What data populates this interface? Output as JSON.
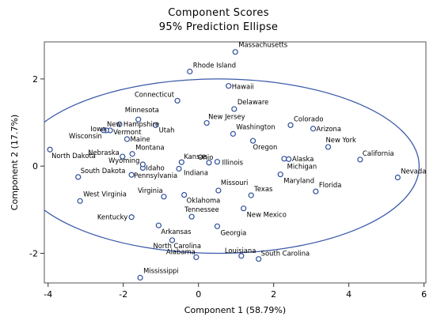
{
  "chart_data": {
    "type": "scatter",
    "title": "Component Scores",
    "subtitle": "95% Prediction Ellipse",
    "xlabel": "Component 1 (58.79%)",
    "ylabel": "Component 2 (17.7%)",
    "xlim": [
      -4.1,
      6.05
    ],
    "ylim": [
      -2.68,
      2.85
    ],
    "xticks": [
      "-4",
      "-2",
      "0",
      "2",
      "4",
      "6"
    ],
    "xtick_values": [
      -4,
      -2,
      0,
      2,
      4,
      6
    ],
    "yticks": [
      "-2",
      "0",
      "2"
    ],
    "ytick_values": [
      -2,
      0,
      2
    ],
    "grid": false,
    "marker_color": "#2f4f9a",
    "ellipse_color": "#3a5aa8",
    "ellipse": {
      "center": [
        0.52,
        0.0
      ],
      "semi_axis_x": 5.35,
      "semi_axis_y": 2.0
    },
    "points": [
      {
        "label": "Massachusetts",
        "x": 0.98,
        "y": 2.62
      },
      {
        "label": "Rhode Island",
        "x": -0.23,
        "y": 2.17
      },
      {
        "label": "Connecticut",
        "x": -0.56,
        "y": 1.5
      },
      {
        "label": "Hawaii",
        "x": 0.8,
        "y": 1.84
      },
      {
        "label": "Delaware",
        "x": 0.95,
        "y": 1.31
      },
      {
        "label": "New Jersey",
        "x": 0.22,
        "y": 0.99
      },
      {
        "label": "Washington",
        "x": 0.92,
        "y": 0.74
      },
      {
        "label": "Colorado",
        "x": 2.45,
        "y": 0.94
      },
      {
        "label": "Arizona",
        "x": 3.05,
        "y": 0.86
      },
      {
        "label": "New York",
        "x": 3.45,
        "y": 0.44
      },
      {
        "label": "California",
        "x": 4.3,
        "y": 0.15
      },
      {
        "label": "Nevada",
        "x": 5.3,
        "y": -0.26
      },
      {
        "label": "Oregon",
        "x": 1.45,
        "y": 0.58
      },
      {
        "label": "Alaska",
        "x": 2.28,
        "y": 0.17
      },
      {
        "label": "Michigan",
        "x": 2.4,
        "y": 0.16
      },
      {
        "label": "Maryland",
        "x": 2.18,
        "y": -0.19
      },
      {
        "label": "Florida",
        "x": 3.12,
        "y": -0.58
      },
      {
        "label": "Ohio",
        "x": 0.28,
        "y": 0.08
      },
      {
        "label": "Illinois",
        "x": 0.5,
        "y": 0.1
      },
      {
        "label": "Kansas",
        "x": -0.45,
        "y": 0.09
      },
      {
        "label": "Indiana",
        "x": -0.52,
        "y": -0.06
      },
      {
        "label": "Texas",
        "x": 1.4,
        "y": -0.67
      },
      {
        "label": "Missouri",
        "x": 0.53,
        "y": -0.56
      },
      {
        "label": "New Mexico",
        "x": 1.2,
        "y": -0.97
      },
      {
        "label": "Oklahoma",
        "x": -0.38,
        "y": -0.66
      },
      {
        "label": "Tennessee",
        "x": -0.18,
        "y": -1.16
      },
      {
        "label": "Georgia",
        "x": 0.5,
        "y": -1.38
      },
      {
        "label": "Louisiana",
        "x": 1.14,
        "y": -2.06
      },
      {
        "label": "South Carolina",
        "x": 1.6,
        "y": -2.13
      },
      {
        "label": "Alabama",
        "x": -0.06,
        "y": -2.09
      },
      {
        "label": "North Carolina",
        "x": -0.7,
        "y": -1.7
      },
      {
        "label": "Arkansas",
        "x": -1.06,
        "y": -1.36
      },
      {
        "label": "Mississippi",
        "x": -1.55,
        "y": -2.56
      },
      {
        "label": "Kentucky",
        "x": -1.78,
        "y": -1.17
      },
      {
        "label": "Virginia",
        "x": -0.92,
        "y": -0.7
      },
      {
        "label": "West Virginia",
        "x": -3.15,
        "y": -0.8
      },
      {
        "label": "Pennsylvania",
        "x": -1.78,
        "y": -0.2
      },
      {
        "label": "Idaho",
        "x": -1.48,
        "y": -0.04
      },
      {
        "label": "Wyoming",
        "x": -1.48,
        "y": 0.04
      },
      {
        "label": "South Dakota",
        "x": -3.2,
        "y": -0.25
      },
      {
        "label": "North Dakota",
        "x": -3.95,
        "y": 0.38
      },
      {
        "label": "Nebraska",
        "x": -2.02,
        "y": 0.22
      },
      {
        "label": "Montana",
        "x": -1.76,
        "y": 0.28
      },
      {
        "label": "Maine",
        "x": -1.9,
        "y": 0.62
      },
      {
        "label": "Minnesota",
        "x": -1.6,
        "y": 1.07
      },
      {
        "label": "New Hampshire",
        "x": -2.1,
        "y": 0.96
      },
      {
        "label": "Utah",
        "x": -1.14,
        "y": 0.94
      },
      {
        "label": "Vermont",
        "x": -2.35,
        "y": 0.82
      },
      {
        "label": "Iowa",
        "x": -2.45,
        "y": 0.82
      },
      {
        "label": "Wisconsin",
        "x": -2.52,
        "y": 0.82
      }
    ]
  }
}
